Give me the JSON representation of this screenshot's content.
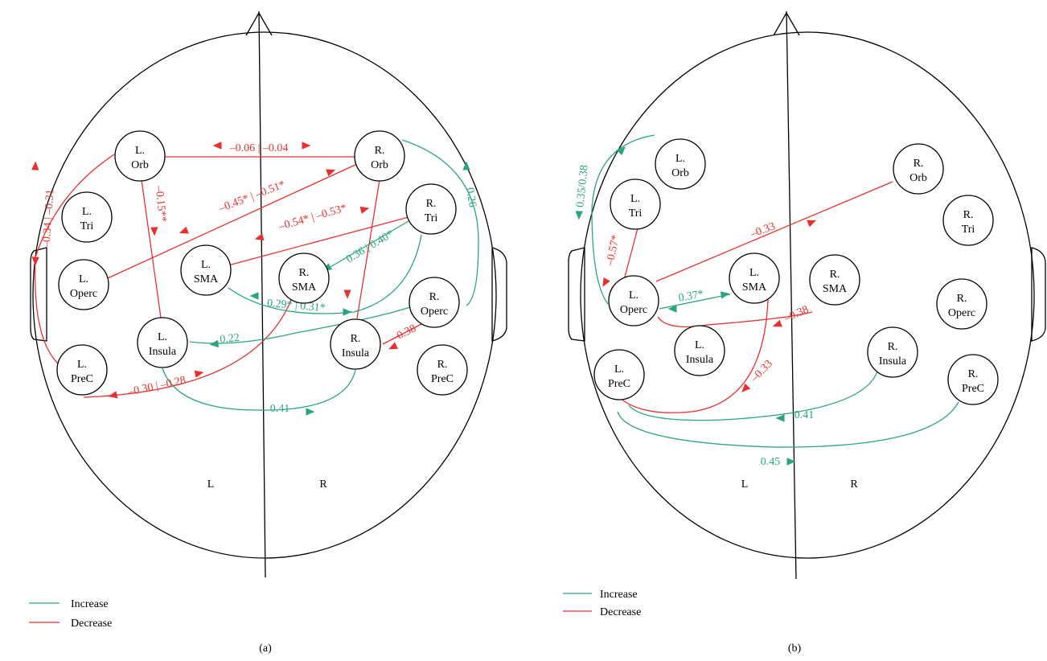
{
  "colors": {
    "increase": "#2aa57f",
    "decrease": "#e8312f"
  },
  "panel_a": {
    "caption": "(a)",
    "side_left": "L",
    "side_right": "R",
    "legend": {
      "increase": "Increase",
      "decrease": "Decrease"
    },
    "nodes": {
      "l_orb": [
        "L.",
        "Orb"
      ],
      "r_orb": [
        "R.",
        "Orb"
      ],
      "l_tri": [
        "L.",
        "Tri"
      ],
      "r_tri": [
        "R.",
        "Tri"
      ],
      "l_sma": [
        "L.",
        "SMA"
      ],
      "r_sma": [
        "R.",
        "SMA"
      ],
      "l_operc": [
        "L.",
        "Operc"
      ],
      "r_operc": [
        "R.",
        "Operc"
      ],
      "l_insula": [
        "L.",
        "Insula"
      ],
      "r_insula": [
        "R.",
        "Insula"
      ],
      "l_prec": [
        "L.",
        "PreC"
      ],
      "r_prec": [
        "R.",
        "PreC"
      ]
    },
    "connections": [
      {
        "type": "decrease",
        "label": "–0.06 | –0.04"
      },
      {
        "type": "decrease",
        "label": "–0.34 | –0.31"
      },
      {
        "type": "decrease",
        "label": "–0.15**"
      },
      {
        "type": "decrease",
        "label": "–0.45* | –0.51*"
      },
      {
        "type": "decrease",
        "label": "–0.54* | –0.53*"
      },
      {
        "type": "increase",
        "label": "0.26"
      },
      {
        "type": "increase",
        "label": "0.36 | 0.40*"
      },
      {
        "type": "increase",
        "label": "0.29* | 0.31*"
      },
      {
        "type": "increase",
        "label": "0.22"
      },
      {
        "type": "decrease",
        "label": "–0.38"
      },
      {
        "type": "decrease",
        "label": "–0.30 | –0.28"
      },
      {
        "type": "increase",
        "label": "0.41"
      },
      {
        "type": "decrease",
        "label": ""
      }
    ]
  },
  "panel_b": {
    "caption": "(b)",
    "side_left": "L",
    "side_right": "R",
    "legend": {
      "increase": "Increase",
      "decrease": "Decrease"
    },
    "nodes": {
      "l_orb": [
        "L.",
        "Orb"
      ],
      "r_orb": [
        "R.",
        "Orb"
      ],
      "l_tri": [
        "L.",
        "Tri"
      ],
      "r_tri": [
        "R.",
        "Tri"
      ],
      "l_sma": [
        "L.",
        "SMA"
      ],
      "r_sma": [
        "R.",
        "SMA"
      ],
      "l_operc": [
        "L.",
        "Operc"
      ],
      "r_operc": [
        "R.",
        "Operc"
      ],
      "l_insula": [
        "L.",
        "Insula"
      ],
      "r_insula": [
        "R.",
        "Insula"
      ],
      "l_prec": [
        "L.",
        "PreC"
      ],
      "r_prec": [
        "R.",
        "PreC"
      ]
    },
    "connections": [
      {
        "type": "increase",
        "label": "0.35/0.38"
      },
      {
        "type": "decrease",
        "label": "–0.57*"
      },
      {
        "type": "decrease",
        "label": "–0.33"
      },
      {
        "type": "increase",
        "label": "0.37*"
      },
      {
        "type": "decrease",
        "label": "–0.38"
      },
      {
        "type": "decrease",
        "label": "–0.33"
      },
      {
        "type": "increase",
        "label": "0.41"
      },
      {
        "type": "increase",
        "label": "0.45"
      }
    ]
  }
}
